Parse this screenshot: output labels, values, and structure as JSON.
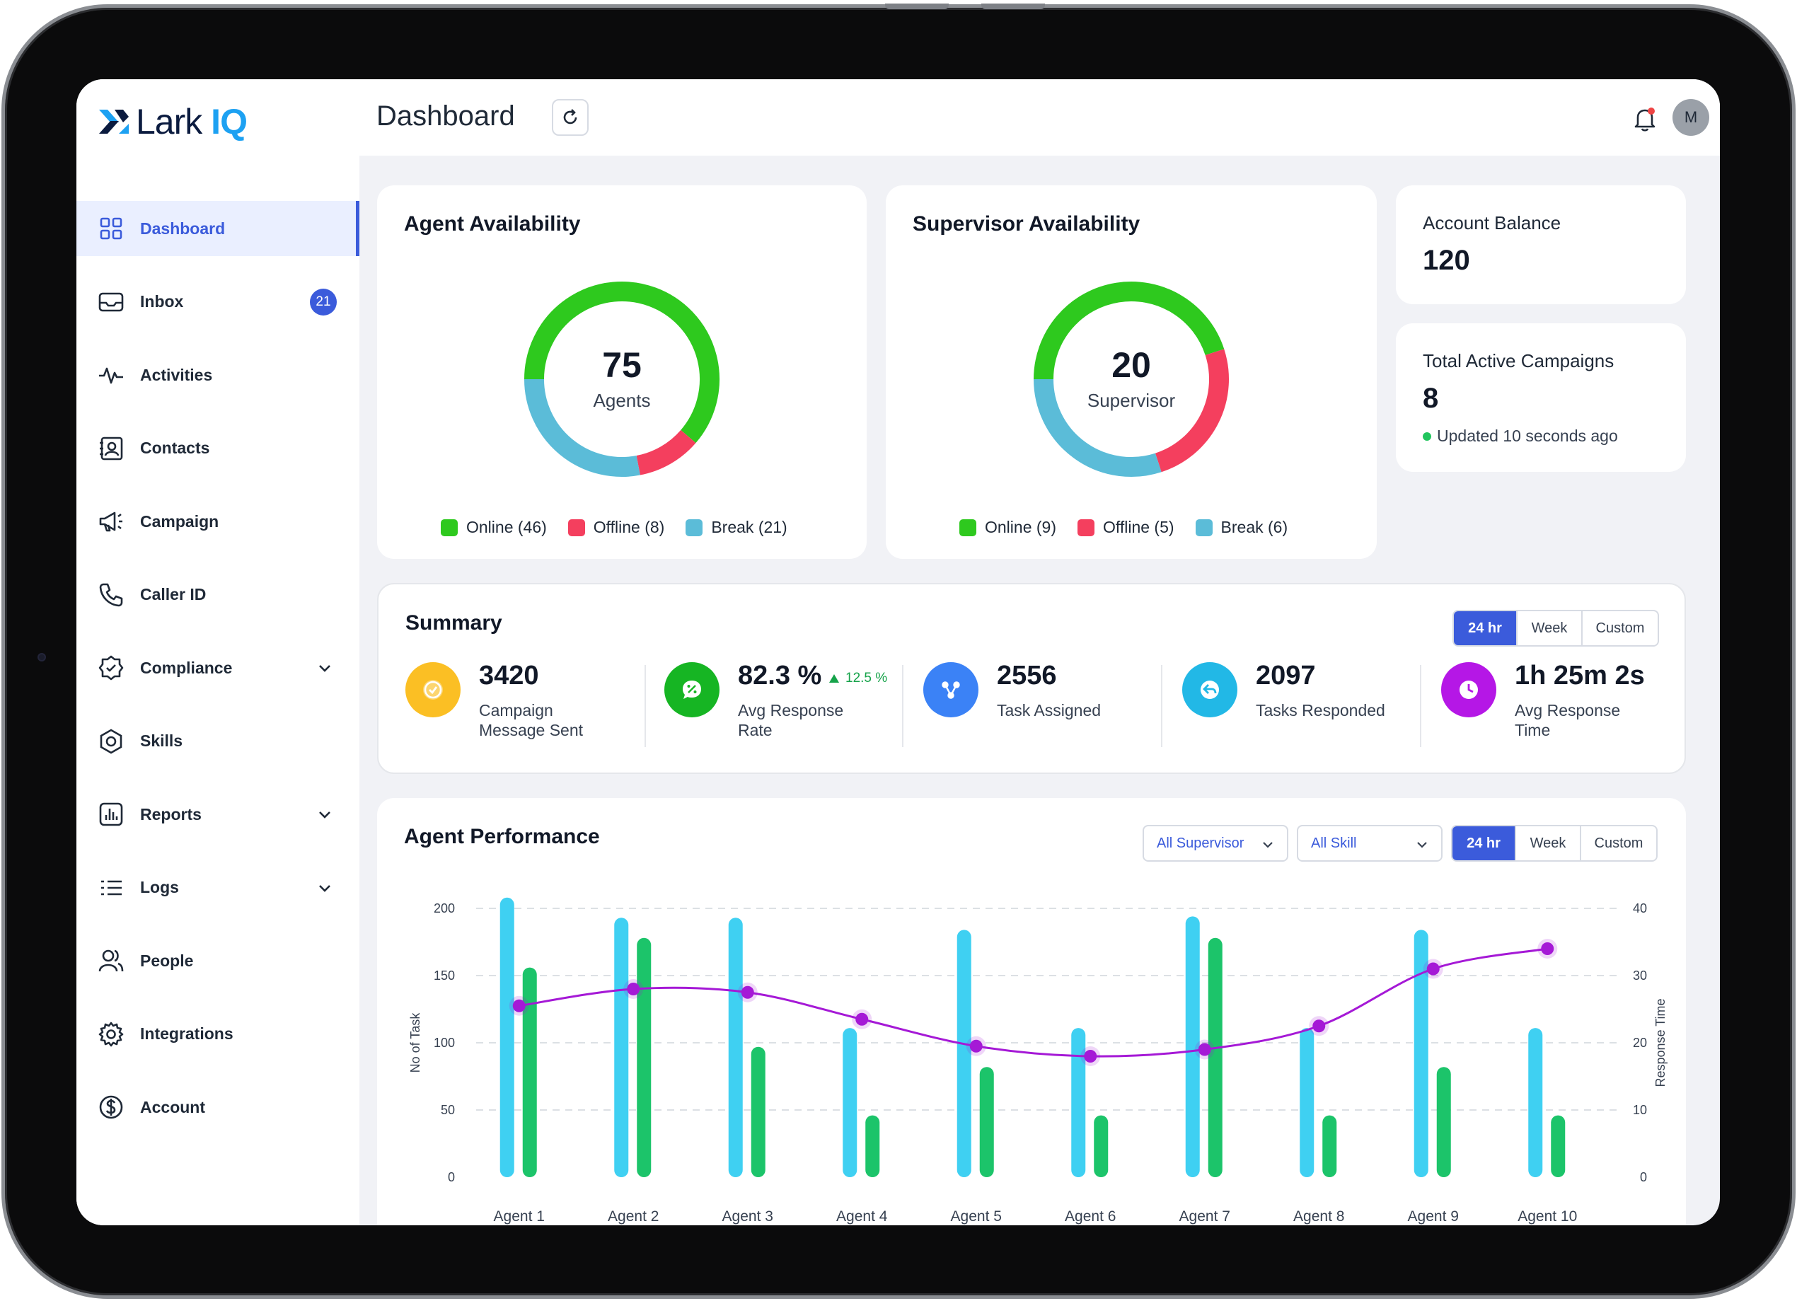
{
  "app": {
    "logo_text": "Lark",
    "logo_accent": "IQ",
    "brand_color": "#1da1f2",
    "accent_color": "#3b5bdb"
  },
  "sidebar": {
    "items": [
      {
        "label": "Dashboard",
        "icon": "grid-icon",
        "active": true
      },
      {
        "label": "Inbox",
        "icon": "inbox-icon",
        "badge": "21"
      },
      {
        "label": "Activities",
        "icon": "activity-icon"
      },
      {
        "label": "Contacts",
        "icon": "contact-card-icon"
      },
      {
        "label": "Campaign",
        "icon": "megaphone-icon"
      },
      {
        "label": "Caller ID",
        "icon": "phone-icon"
      },
      {
        "label": "Compliance",
        "icon": "badge-check-icon",
        "expandable": true
      },
      {
        "label": "Skills",
        "icon": "hexagon-icon"
      },
      {
        "label": "Reports",
        "icon": "bar-chart-icon",
        "expandable": true
      },
      {
        "label": "Logs",
        "icon": "list-icon",
        "expandable": true
      },
      {
        "label": "People",
        "icon": "people-icon"
      },
      {
        "label": "Integrations",
        "icon": "gear-icon"
      },
      {
        "label": "Account",
        "icon": "dollar-circle-icon"
      }
    ]
  },
  "header": {
    "title": "Dashboard",
    "avatar_initial": "M"
  },
  "agent_availability": {
    "title": "Agent Availability",
    "total": "75",
    "unit": "Agents",
    "segments": [
      {
        "label": "Online (46)",
        "value": 46,
        "color": "#2ec91e"
      },
      {
        "label": "Offline (8)",
        "value": 8,
        "color": "#f43f5e"
      },
      {
        "label": "Break (21)",
        "value": 21,
        "color": "#5bbcd8"
      }
    ]
  },
  "supervisor_availability": {
    "title": "Supervisor Availability",
    "total": "20",
    "unit": "Supervisor",
    "segments": [
      {
        "label": "Online (9)",
        "value": 9,
        "color": "#2ec91e"
      },
      {
        "label": "Offline (5)",
        "value": 5,
        "color": "#f43f5e"
      },
      {
        "label": "Break (6)",
        "value": 6,
        "color": "#5bbcd8"
      }
    ]
  },
  "account_balance": {
    "label": "Account Balance",
    "value": "120"
  },
  "campaigns": {
    "label": "Total Active Campaigns",
    "value": "8",
    "updated": "Updated 10 seconds ago"
  },
  "summary": {
    "title": "Summary",
    "ranges": [
      "24 hr",
      "Week",
      "Custom"
    ],
    "selected_range": "24 hr",
    "metrics": [
      {
        "value": "3420",
        "label": "Campaign Message Sent",
        "icon": "check-circle-icon",
        "color": "#fbbf24"
      },
      {
        "value": "82.3 %",
        "label": "Avg Response Rate",
        "delta": "12.5 %",
        "icon": "percent-chat-icon",
        "color": "#16b523"
      },
      {
        "value": "2556",
        "label": "Task Assigned",
        "icon": "share-nodes-icon",
        "color": "#3b82f6"
      },
      {
        "value": "2097",
        "label": "Tasks Responded",
        "icon": "reply-icon",
        "color": "#22b8e6"
      },
      {
        "value": "1h 25m 2s",
        "label": "Avg Response Time",
        "icon": "clock-icon",
        "color": "#b517e6"
      }
    ]
  },
  "agent_performance": {
    "title": "Agent Performance",
    "filters": {
      "supervisor": "All Supervisor",
      "skill": "All Skill"
    },
    "ranges": [
      "24 hr",
      "Week",
      "Custom"
    ],
    "selected_range": "24 hr"
  },
  "chart_data": {
    "type": "bar",
    "categories": [
      "Agent 1",
      "Agent 2",
      "Agent 3",
      "Agent 4",
      "Agent 5",
      "Agent 6",
      "Agent 7",
      "Agent 8",
      "Agent 9",
      "Agent 10"
    ],
    "ylabel": "No of Task",
    "y2label": "Response Time",
    "ylim": [
      0,
      200
    ],
    "y2lim": [
      0,
      40
    ],
    "yticks": [
      0,
      50,
      100,
      150,
      200
    ],
    "y2ticks": [
      0,
      10,
      20,
      30,
      40
    ],
    "grid": true,
    "series": [
      {
        "values": [
          208,
          193,
          193,
          111,
          184,
          111,
          194,
          111,
          184,
          111
        ],
        "color": "#3fd0f2",
        "kind": "bar"
      },
      {
        "values": [
          156,
          178,
          97,
          46,
          82,
          46,
          178,
          46,
          82,
          46
        ],
        "color": "#1cc46a",
        "kind": "bar"
      },
      {
        "values": [
          25.5,
          28,
          27.5,
          23.5,
          19.5,
          18,
          19,
          22.5,
          31,
          34
        ],
        "color": "#a519d6",
        "kind": "line",
        "axis": "right"
      }
    ]
  }
}
